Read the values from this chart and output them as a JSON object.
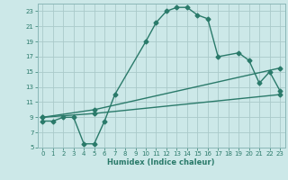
{
  "xlabel": "Humidex (Indice chaleur)",
  "bg_color": "#cce8e8",
  "grid_color": "#b8d8d8",
  "line_color": "#2a7a6a",
  "xlim": [
    -0.5,
    23.5
  ],
  "ylim": [
    5,
    24
  ],
  "xticks": [
    0,
    1,
    2,
    3,
    4,
    5,
    6,
    7,
    8,
    9,
    10,
    11,
    12,
    13,
    14,
    15,
    16,
    17,
    18,
    19,
    20,
    21,
    22,
    23
  ],
  "yticks": [
    5,
    7,
    9,
    11,
    13,
    15,
    17,
    19,
    21,
    23
  ],
  "curve1_x": [
    0,
    1,
    2,
    3,
    4,
    5,
    6,
    7,
    10,
    11,
    12,
    13,
    14,
    15,
    16,
    17,
    19,
    20,
    21,
    22,
    23
  ],
  "curve1_y": [
    8.5,
    8.5,
    9.0,
    9.0,
    5.5,
    5.5,
    8.5,
    12.0,
    19.0,
    21.5,
    23.0,
    23.5,
    23.5,
    22.5,
    22.0,
    17.0,
    17.5,
    16.5,
    13.5,
    15.0,
    12.5
  ],
  "curve2_x": [
    0,
    5,
    23
  ],
  "curve2_y": [
    9.0,
    10.0,
    15.5
  ],
  "curve3_x": [
    0,
    5,
    23
  ],
  "curve3_y": [
    9.0,
    9.5,
    12.0
  ],
  "marker": "D",
  "markersize": 2.5,
  "linewidth": 1.0
}
